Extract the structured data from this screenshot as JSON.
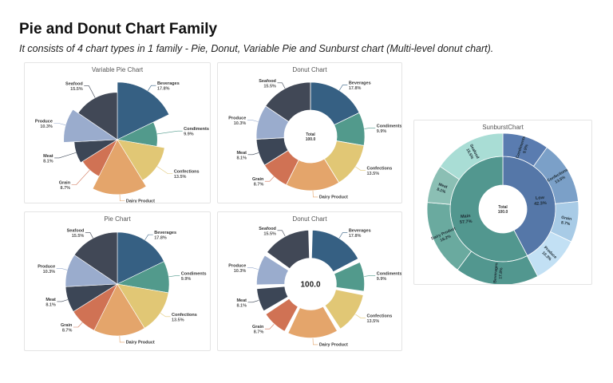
{
  "header": {
    "title": "Pie and Donut Chart Family",
    "subtitle": "It consists of 4 chart types in 1 family - Pie, Donut, Variable Pie and Sunburst chart (Multi-level donut chart)."
  },
  "chart_data": [
    {
      "type": "variable-pie",
      "title": "Variable Pie Chart",
      "categories": [
        "Beverages",
        "Condiments",
        "Confections",
        "Dairy Product",
        "Grain",
        "Meat",
        "Produce",
        "Seafood"
      ],
      "values": [
        17.8,
        9.9,
        13.5,
        16.2,
        8.7,
        8.1,
        10.3,
        15.5
      ],
      "radius_values": [
        100,
        45,
        70,
        92,
        48,
        55,
        88,
        68
      ],
      "labels": [
        "17.8%",
        "9.9%",
        "13.5%",
        "",
        "8.7%",
        "8.1%",
        "10.3%",
        "15.5%"
      ],
      "colors": [
        "#366083",
        "#529a8c",
        "#e1c775",
        "#e4a56b",
        "#d07254",
        "#3c4656",
        "#9aaccd",
        "#414856"
      ]
    },
    {
      "type": "donut",
      "title": "Donut Chart",
      "center_label": "Total",
      "center_value": "100.0",
      "categories": [
        "Beverages",
        "Condiments",
        "Confections",
        "Dairy Product",
        "Grain",
        "Meat",
        "Produce",
        "Seafood"
      ],
      "values": [
        17.8,
        9.9,
        13.5,
        16.2,
        8.7,
        8.1,
        10.3,
        15.5
      ],
      "labels": [
        "17.8%",
        "9.9%",
        "13.5%",
        "",
        "8.7%",
        "8.1%",
        "10.3%",
        "15.5%"
      ],
      "colors": [
        "#366083",
        "#529a8c",
        "#e1c775",
        "#e4a56b",
        "#d07254",
        "#3c4656",
        "#9aaccd",
        "#414856"
      ]
    },
    {
      "type": "pie",
      "title": "Pie Chart",
      "categories": [
        "Beverages",
        "Condiments",
        "Confections",
        "Dairy Product",
        "Grain",
        "Meat",
        "Produce",
        "Seafood"
      ],
      "values": [
        17.8,
        9.9,
        13.5,
        16.2,
        8.7,
        8.1,
        10.3,
        15.5
      ],
      "labels": [
        "17.8%",
        "9.9%",
        "13.5%",
        "",
        "8.7%",
        "8.1%",
        "10.3%",
        "15.5%"
      ],
      "colors": [
        "#366083",
        "#529a8c",
        "#e1c775",
        "#e4a56b",
        "#d07254",
        "#3c4656",
        "#9aaccd",
        "#414856"
      ]
    },
    {
      "type": "donut",
      "title": "Donut Chart",
      "center_value": "100.0",
      "exploded": true,
      "categories": [
        "Beverages",
        "Condiments",
        "Confections",
        "Dairy Product",
        "Grain",
        "Meat",
        "Produce",
        "Seafood"
      ],
      "values": [
        17.8,
        9.9,
        13.5,
        16.2,
        8.7,
        8.1,
        10.3,
        15.5
      ],
      "labels": [
        "17.8%",
        "9.9%",
        "13.5%",
        "",
        "8.7%",
        "8.1%",
        "10.3%",
        "15.5%"
      ],
      "colors": [
        "#366083",
        "#529a8c",
        "#e1c775",
        "#e4a56b",
        "#d07254",
        "#3c4656",
        "#9aaccd",
        "#414856"
      ]
    },
    {
      "type": "sunburst",
      "title": "SunburstChart",
      "center_label": "Total",
      "center_value": "100.0",
      "inner": [
        {
          "name": "Low",
          "value": 42.3,
          "label": "42.3%",
          "color": "#5577a8"
        },
        {
          "name": "Main",
          "value": 57.7,
          "label": "57.7%",
          "color": "#52978f"
        }
      ],
      "outer": [
        {
          "name": "Condiments",
          "value": 9.9,
          "label": "9.9%",
          "color": "#5a7cb0"
        },
        {
          "name": "Confections",
          "value": 13.5,
          "label": "13.5%",
          "color": "#7ba0c8"
        },
        {
          "name": "Grain",
          "value": 8.7,
          "label": "8.7%",
          "color": "#a8cbe6"
        },
        {
          "name": "Produce",
          "value": 10.3,
          "label": "10.3%",
          "color": "#c2e0f4"
        },
        {
          "name": "Beverages",
          "value": 17.8,
          "label": "17.8%",
          "color": "#52978f"
        },
        {
          "name": "Dairy Product",
          "value": 16.2,
          "label": "16.2%",
          "color": "#6aaa9f"
        },
        {
          "name": "Meat",
          "value": 8.1,
          "label": "8.1%",
          "color": "#8bbfb4"
        },
        {
          "name": "Seafood",
          "value": 15.5,
          "label": "15.5%",
          "color": "#a9ddd5"
        }
      ]
    }
  ]
}
